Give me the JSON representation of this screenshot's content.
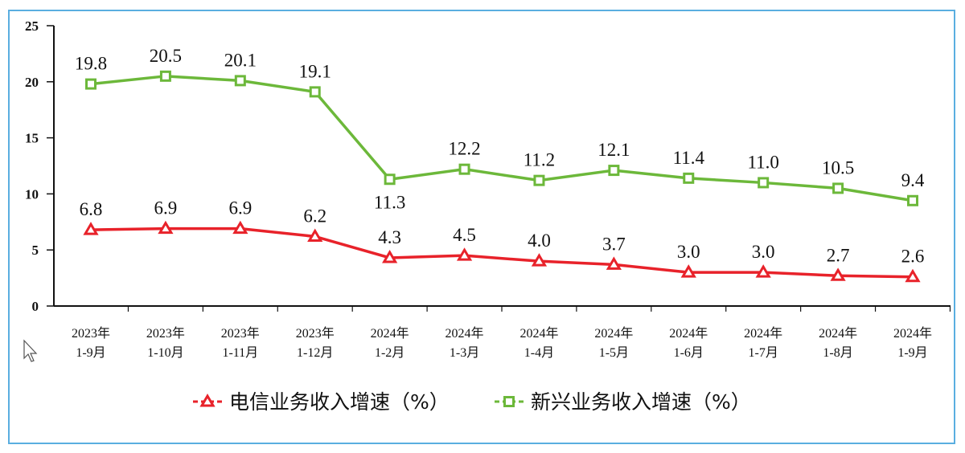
{
  "chart_data": {
    "type": "line",
    "title": "",
    "xlabel": "",
    "ylabel": "",
    "ylim": [
      0,
      25
    ],
    "yticks": [
      0,
      5,
      10,
      15,
      20,
      25
    ],
    "grid": false,
    "legend_position": "bottom",
    "categories": [
      [
        "2023年",
        "1-9月"
      ],
      [
        "2023年",
        "1-10月"
      ],
      [
        "2023年",
        "1-11月"
      ],
      [
        "2023年",
        "1-12月"
      ],
      [
        "2024年",
        "1-2月"
      ],
      [
        "2024年",
        "1-3月"
      ],
      [
        "2024年",
        "1-4月"
      ],
      [
        "2024年",
        "1-5月"
      ],
      [
        "2024年",
        "1-6月"
      ],
      [
        "2024年",
        "1-7月"
      ],
      [
        "2024年",
        "1-8月"
      ],
      [
        "2024年",
        "1-9月"
      ]
    ],
    "series": [
      {
        "name": "电信业务收入增速（%）",
        "color": "#e8222a",
        "marker": "triangle",
        "values": [
          6.8,
          6.9,
          6.9,
          6.2,
          4.3,
          4.5,
          4.0,
          3.7,
          3.0,
          3.0,
          2.7,
          2.6
        ],
        "labels": [
          "6.8",
          "6.9",
          "6.9",
          "6.2",
          "4.3",
          "4.5",
          "4.0",
          "3.7",
          "3.0",
          "3.0",
          "2.7",
          "2.6"
        ]
      },
      {
        "name": "新兴业务收入增速（%）",
        "color": "#6cb83a",
        "marker": "square",
        "values": [
          19.8,
          20.5,
          20.1,
          19.1,
          11.3,
          12.2,
          11.2,
          12.1,
          11.4,
          11.0,
          10.5,
          9.4
        ],
        "labels": [
          "19.8",
          "20.5",
          "20.1",
          "19.1",
          "11.3",
          "12.2",
          "11.2",
          "12.1",
          "11.4",
          "11.0",
          "10.5",
          "9.4"
        ]
      }
    ]
  }
}
